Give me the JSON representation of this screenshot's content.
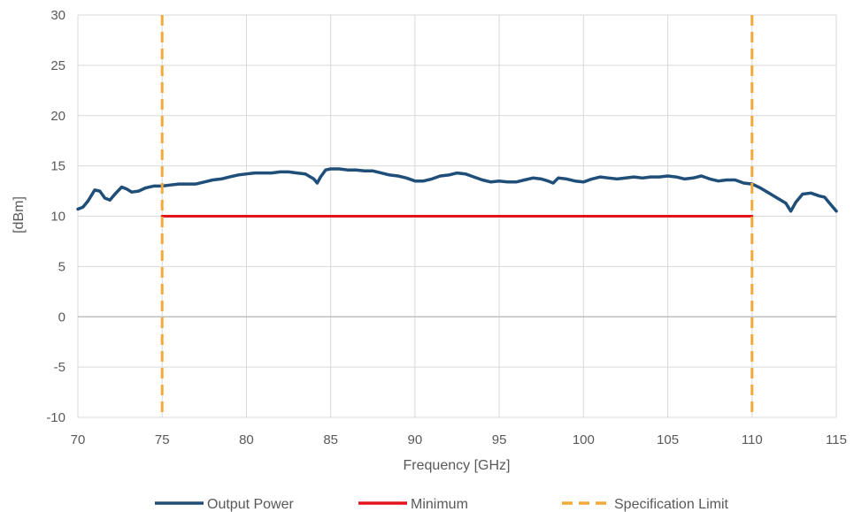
{
  "chart_data": {
    "type": "line",
    "title": "",
    "xlabel": "Frequency [GHz]",
    "ylabel": "[dBm]",
    "xlim": [
      70,
      115
    ],
    "ylim": [
      -10,
      30
    ],
    "xticks": [
      70,
      75,
      80,
      85,
      90,
      95,
      100,
      105,
      110,
      115
    ],
    "yticks": [
      -10,
      -5,
      0,
      5,
      10,
      15,
      20,
      25,
      30
    ],
    "grid": true,
    "legend_position": "bottom",
    "series": [
      {
        "name": "Output Power",
        "color": "#1F4E79",
        "style": "solid",
        "points": [
          [
            70.0,
            10.7
          ],
          [
            70.3,
            10.9
          ],
          [
            70.6,
            11.5
          ],
          [
            71.0,
            12.6
          ],
          [
            71.3,
            12.5
          ],
          [
            71.6,
            11.8
          ],
          [
            71.9,
            11.6
          ],
          [
            72.2,
            12.2
          ],
          [
            72.6,
            12.9
          ],
          [
            72.9,
            12.7
          ],
          [
            73.2,
            12.4
          ],
          [
            73.6,
            12.5
          ],
          [
            74.0,
            12.8
          ],
          [
            74.5,
            13.0
          ],
          [
            75.0,
            13.0
          ],
          [
            75.5,
            13.1
          ],
          [
            76.0,
            13.2
          ],
          [
            76.5,
            13.2
          ],
          [
            77.0,
            13.2
          ],
          [
            77.5,
            13.4
          ],
          [
            78.0,
            13.6
          ],
          [
            78.5,
            13.7
          ],
          [
            79.0,
            13.9
          ],
          [
            79.5,
            14.1
          ],
          [
            80.0,
            14.2
          ],
          [
            80.5,
            14.3
          ],
          [
            81.0,
            14.3
          ],
          [
            81.5,
            14.3
          ],
          [
            82.0,
            14.4
          ],
          [
            82.5,
            14.4
          ],
          [
            83.0,
            14.3
          ],
          [
            83.5,
            14.2
          ],
          [
            84.0,
            13.7
          ],
          [
            84.2,
            13.3
          ],
          [
            84.4,
            13.9
          ],
          [
            84.7,
            14.6
          ],
          [
            85.0,
            14.7
          ],
          [
            85.5,
            14.7
          ],
          [
            86.0,
            14.6
          ],
          [
            86.5,
            14.6
          ],
          [
            87.0,
            14.5
          ],
          [
            87.5,
            14.5
          ],
          [
            88.0,
            14.3
          ],
          [
            88.5,
            14.1
          ],
          [
            89.0,
            14.0
          ],
          [
            89.5,
            13.8
          ],
          [
            90.0,
            13.5
          ],
          [
            90.5,
            13.5
          ],
          [
            91.0,
            13.7
          ],
          [
            91.5,
            14.0
          ],
          [
            92.0,
            14.1
          ],
          [
            92.5,
            14.3
          ],
          [
            93.0,
            14.2
          ],
          [
            93.5,
            13.9
          ],
          [
            94.0,
            13.6
          ],
          [
            94.5,
            13.4
          ],
          [
            95.0,
            13.5
          ],
          [
            95.5,
            13.4
          ],
          [
            96.0,
            13.4
          ],
          [
            96.5,
            13.6
          ],
          [
            97.0,
            13.8
          ],
          [
            97.5,
            13.7
          ],
          [
            97.9,
            13.5
          ],
          [
            98.2,
            13.3
          ],
          [
            98.5,
            13.8
          ],
          [
            99.0,
            13.7
          ],
          [
            99.5,
            13.5
          ],
          [
            100.0,
            13.4
          ],
          [
            100.5,
            13.7
          ],
          [
            101.0,
            13.9
          ],
          [
            101.5,
            13.8
          ],
          [
            102.0,
            13.7
          ],
          [
            102.5,
            13.8
          ],
          [
            103.0,
            13.9
          ],
          [
            103.5,
            13.8
          ],
          [
            104.0,
            13.9
          ],
          [
            104.5,
            13.9
          ],
          [
            105.0,
            14.0
          ],
          [
            105.5,
            13.9
          ],
          [
            106.0,
            13.7
          ],
          [
            106.5,
            13.8
          ],
          [
            107.0,
            14.0
          ],
          [
            107.5,
            13.7
          ],
          [
            108.0,
            13.5
          ],
          [
            108.5,
            13.6
          ],
          [
            109.0,
            13.6
          ],
          [
            109.5,
            13.3
          ],
          [
            110.0,
            13.2
          ],
          [
            110.5,
            12.8
          ],
          [
            111.0,
            12.3
          ],
          [
            111.5,
            11.8
          ],
          [
            112.0,
            11.3
          ],
          [
            112.3,
            10.5
          ],
          [
            112.6,
            11.4
          ],
          [
            113.0,
            12.2
          ],
          [
            113.5,
            12.3
          ],
          [
            114.0,
            12.0
          ],
          [
            114.3,
            11.9
          ],
          [
            114.6,
            11.3
          ],
          [
            115.0,
            10.5
          ]
        ]
      },
      {
        "name": "Minimum",
        "color": "#E3121B",
        "style": "solid",
        "points": [
          [
            75,
            10
          ],
          [
            110,
            10
          ]
        ]
      },
      {
        "name": "Specification Limit",
        "color": "#F2A93B",
        "style": "dashed",
        "vertical_at": [
          75,
          110
        ]
      }
    ]
  }
}
